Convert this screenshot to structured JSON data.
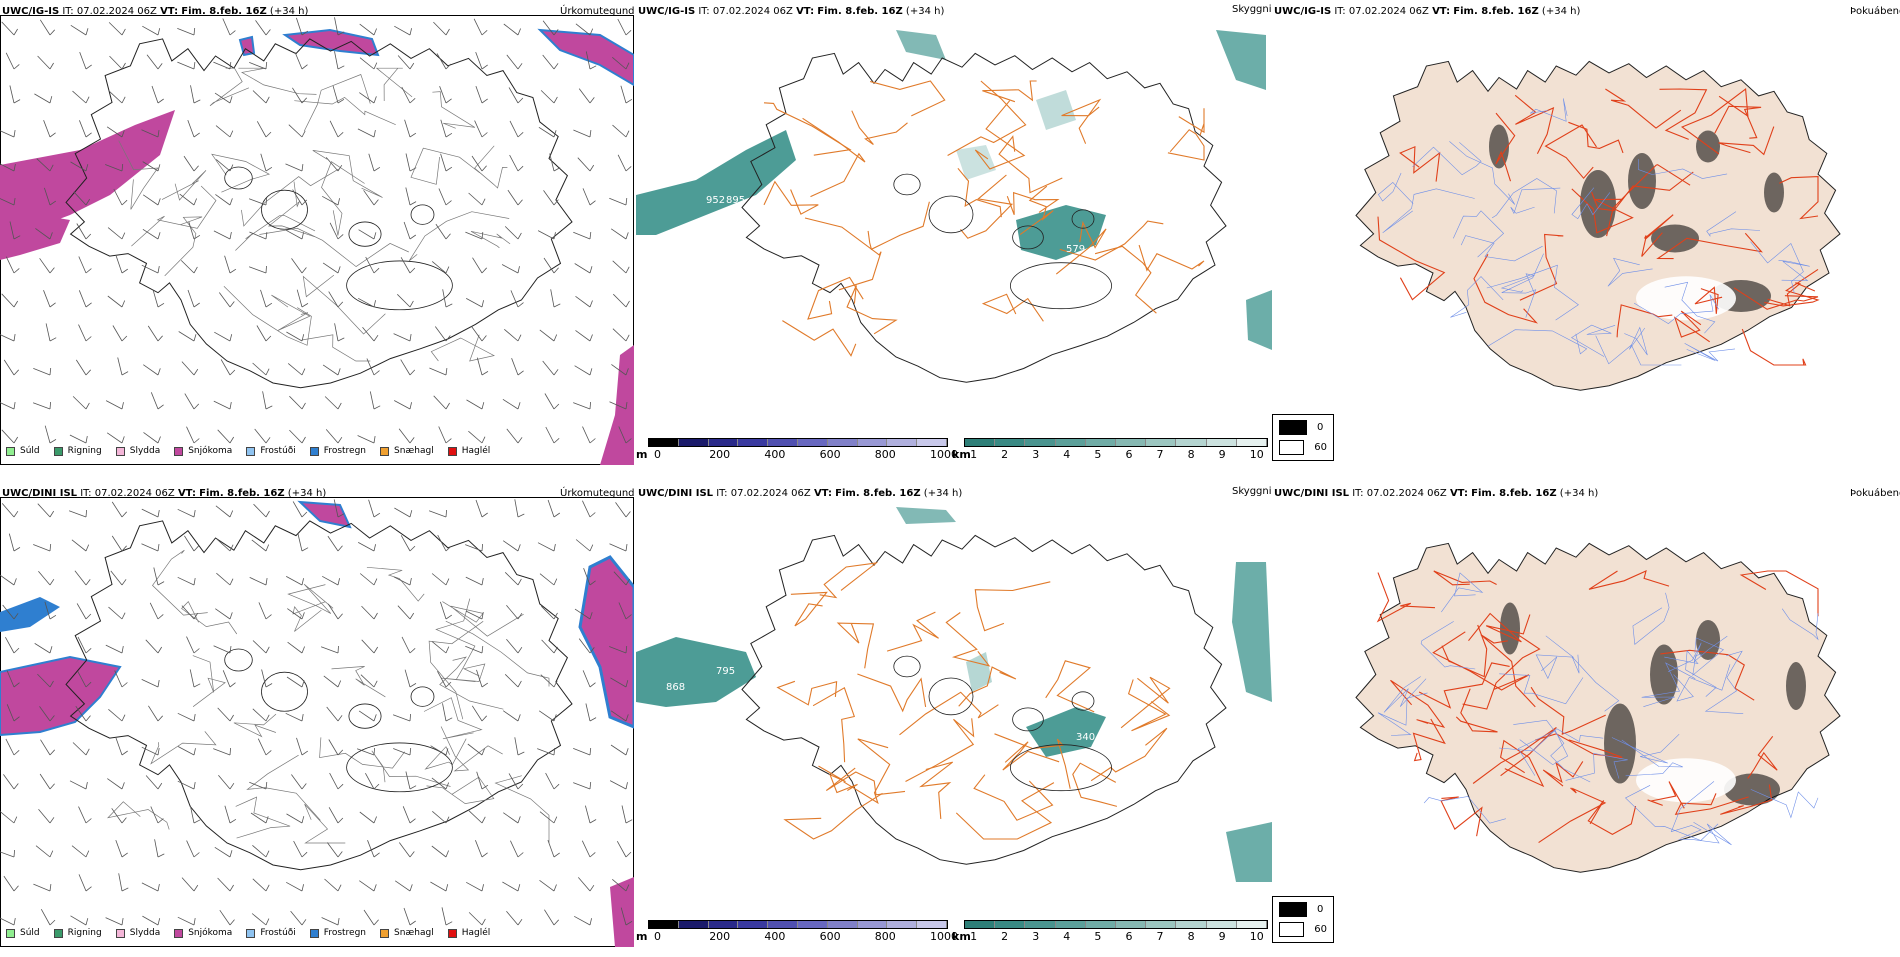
{
  "colors": {
    "suld": "#90ee90",
    "rigning": "#3a9a6a",
    "slydda": "#f4b6d8",
    "snjokoma": "#c0489e",
    "frostudi": "#8fc3f0",
    "frostregn": "#2f7fd0",
    "snaehagl": "#f0a030",
    "haglel": "#e01010",
    "teal": "#2e8b84",
    "road": "#e07a2a",
    "land": "#f2e1d3",
    "blueriver": "#6f8fe8"
  },
  "rows": [
    {
      "model": "UWC/IG-IS",
      "precip": {
        "it_label": "IT:",
        "it_value": "07.02.2024 06Z",
        "vt_label": "VT:",
        "vt_value": "Fim. 8.feb. 16Z",
        "lead": "(+34 h)",
        "name": "Úrkomutegund"
      },
      "vis": {
        "it_label": "IT:",
        "it_value": "07.02.2024 06Z",
        "vt_label": "VT:",
        "vt_value": "Fim. 8.feb. 16Z",
        "lead": "(+34 h)",
        "name": "Skyggni",
        "labels": [
          "952",
          "895",
          "579"
        ]
      },
      "fog": {
        "it_label": "IT:",
        "it_value": "07.02.2024 06Z",
        "vt_label": "VT:",
        "vt_value": "Fim. 8.feb. 16Z",
        "lead": "(+34 h)",
        "name": "Þokuábendi"
      }
    },
    {
      "model": "UWC/DINI ISL",
      "precip": {
        "it_label": "IT:",
        "it_value": "07.02.2024 06Z",
        "vt_label": "VT:",
        "vt_value": "Fim. 8.feb. 16Z",
        "lead": "(+34 h)",
        "name": "Úrkomutegund"
      },
      "vis": {
        "it_label": "IT:",
        "it_value": "07.02.2024 06Z",
        "vt_label": "VT:",
        "vt_value": "Fim. 8.feb. 16Z",
        "lead": "(+34 h)",
        "name": "Skyggni",
        "labels": [
          "795",
          "868",
          "340"
        ]
      },
      "fog": {
        "it_label": "IT:",
        "it_value": "07.02.2024 06Z",
        "vt_label": "VT:",
        "vt_value": "Fim. 8.feb. 16Z",
        "lead": "(+34 h)",
        "name": "Þokuábendi"
      }
    }
  ],
  "precip_legend": [
    "Súld",
    "Rigning",
    "Slydda",
    "Snjókoma",
    "Frostúði",
    "Frostregn",
    "Snæhagl",
    "Haglél"
  ],
  "ceiling_bar": {
    "unit": "m",
    "ticks": [
      "0",
      "200",
      "400",
      "600",
      "800",
      "1000"
    ]
  },
  "vis_bar": {
    "unit": "km",
    "ticks": [
      "1",
      "2",
      "3",
      "4",
      "5",
      "6",
      "7",
      "8",
      "9",
      "10"
    ]
  },
  "fog_key": {
    "low": "0",
    "high": "60"
  }
}
